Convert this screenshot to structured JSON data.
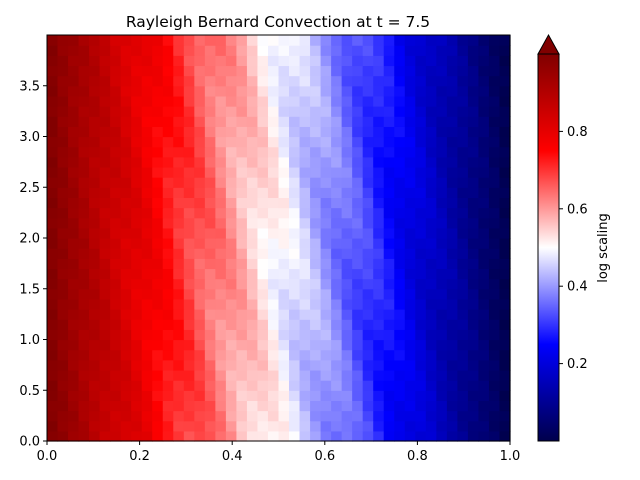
{
  "chart_data": {
    "type": "heatmap",
    "title": "Rayleigh Bernard Convection at t = 7.5",
    "xlabel": "",
    "ylabel": "",
    "x_range": [
      0.0,
      1.0
    ],
    "y_range": [
      0.0,
      4.0
    ],
    "x_ticks": [
      "0.0",
      "0.2",
      "0.4",
      "0.6",
      "0.8",
      "1.0"
    ],
    "y_ticks": [
      "0.0",
      "0.5",
      "1.0",
      "1.5",
      "2.0",
      "2.5",
      "3.0",
      "3.5"
    ],
    "grid": {
      "nx": 44,
      "ny": 40
    },
    "field_description": "value decreases roughly linearly from ~1.0 at x=0 to ~0.0 at x=1 with small vertical wobble",
    "colormap": "seismic",
    "colorbar": {
      "label": "log scaling",
      "range": [
        0.0,
        1.0
      ],
      "ticks": [
        "0.2",
        "0.4",
        "0.6",
        "0.8"
      ],
      "extend": "max"
    },
    "grid_lines": false
  }
}
